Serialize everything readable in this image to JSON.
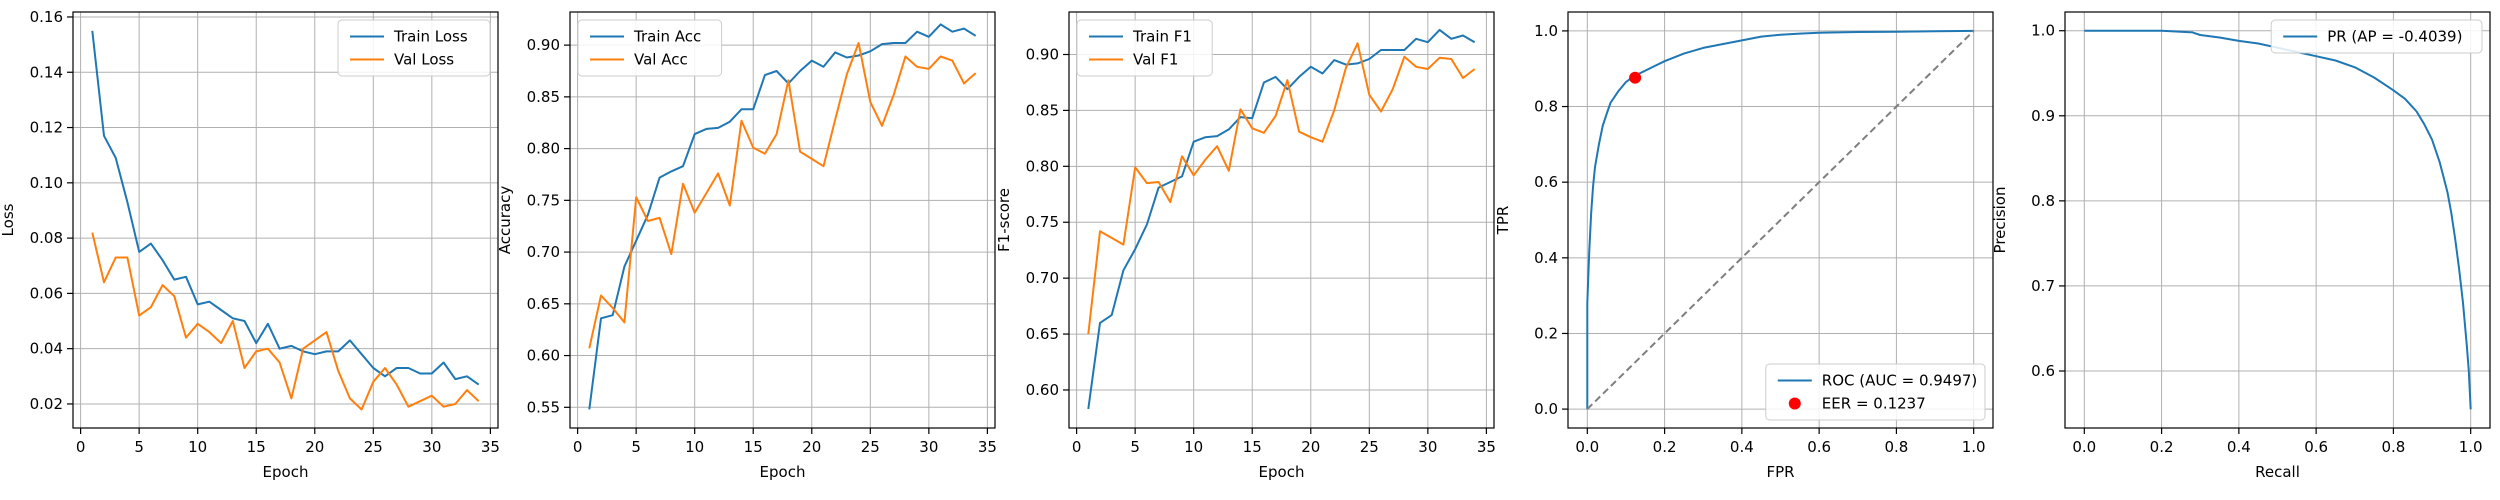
{
  "chart_data": [
    {
      "type": "line",
      "xlabel": "Epoch",
      "ylabel": "Loss",
      "xlim": [
        -0.65,
        35.65
      ],
      "ylim": [
        0.0113,
        0.1618
      ],
      "xticks": [
        0,
        5,
        10,
        15,
        20,
        25,
        30,
        35
      ],
      "xticklabels": [
        "0",
        "5",
        "10",
        "15",
        "20",
        "25",
        "30",
        "35"
      ],
      "yticks": [
        0.02,
        0.04,
        0.06,
        0.08,
        0.1,
        0.12,
        0.14,
        0.16
      ],
      "yticklabels": [
        "0.02",
        "0.04",
        "0.06",
        "0.08",
        "0.10",
        "0.12",
        "0.14",
        "0.16"
      ],
      "grid": true,
      "legend_position": "upper right",
      "series": [
        {
          "name": "Train Loss",
          "color": "#1f77b4",
          "x": [
            1,
            2,
            3,
            4,
            5,
            6,
            7,
            8,
            9,
            10,
            11,
            12,
            13,
            14,
            15,
            16,
            17,
            18,
            19,
            20,
            21,
            22,
            23,
            24,
            25,
            26,
            27,
            28,
            29,
            30,
            31,
            32,
            33,
            34
          ],
          "y": [
            0.155,
            0.117,
            0.109,
            0.093,
            0.075,
            0.078,
            0.072,
            0.065,
            0.066,
            0.056,
            0.057,
            0.054,
            0.051,
            0.05,
            0.042,
            0.049,
            0.04,
            0.041,
            0.039,
            0.038,
            0.039,
            0.039,
            0.043,
            0.038,
            0.033,
            0.03,
            0.033,
            0.033,
            0.031,
            0.031,
            0.035,
            0.029,
            0.03,
            0.027
          ]
        },
        {
          "name": "Val Loss",
          "color": "#ff7f0e",
          "x": [
            1,
            2,
            3,
            4,
            5,
            6,
            7,
            8,
            9,
            10,
            11,
            12,
            13,
            14,
            15,
            16,
            17,
            18,
            19,
            20,
            21,
            22,
            23,
            24,
            25,
            26,
            27,
            28,
            29,
            30,
            31,
            32,
            33,
            34
          ],
          "y": [
            0.082,
            0.064,
            0.073,
            0.073,
            0.052,
            0.055,
            0.063,
            0.059,
            0.044,
            0.049,
            0.046,
            0.042,
            0.05,
            0.033,
            0.039,
            0.04,
            0.035,
            0.022,
            0.04,
            0.043,
            0.046,
            0.032,
            0.022,
            0.018,
            0.028,
            0.033,
            0.027,
            0.019,
            0.021,
            0.023,
            0.019,
            0.02,
            0.025,
            0.021
          ]
        }
      ]
    },
    {
      "type": "line",
      "xlabel": "Epoch",
      "ylabel": "Accuracy",
      "xlim": [
        -0.65,
        35.65
      ],
      "ylim": [
        0.53,
        0.932
      ],
      "xticks": [
        0,
        5,
        10,
        15,
        20,
        25,
        30,
        35
      ],
      "xticklabels": [
        "0",
        "5",
        "10",
        "15",
        "20",
        "25",
        "30",
        "35"
      ],
      "yticks": [
        0.55,
        0.6,
        0.65,
        0.7,
        0.75,
        0.8,
        0.85,
        0.9
      ],
      "yticklabels": [
        "0.55",
        "0.60",
        "0.65",
        "0.70",
        "0.75",
        "0.80",
        "0.85",
        "0.90"
      ],
      "grid": true,
      "legend_position": "upper left",
      "series": [
        {
          "name": "Train Acc",
          "color": "#1f77b4",
          "x": [
            1,
            2,
            3,
            4,
            5,
            6,
            7,
            8,
            9,
            10,
            11,
            12,
            13,
            14,
            15,
            16,
            17,
            18,
            19,
            20,
            21,
            22,
            23,
            24,
            25,
            26,
            27,
            28,
            29,
            30,
            31,
            32,
            33,
            34
          ],
          "y": [
            0.548,
            0.636,
            0.639,
            0.686,
            0.711,
            0.736,
            0.772,
            0.778,
            0.783,
            0.814,
            0.819,
            0.82,
            0.826,
            0.838,
            0.838,
            0.871,
            0.875,
            0.863,
            0.875,
            0.885,
            0.879,
            0.893,
            0.888,
            0.89,
            0.894,
            0.901,
            0.902,
            0.902,
            0.913,
            0.908,
            0.92,
            0.913,
            0.916,
            0.909
          ]
        },
        {
          "name": "Val Acc",
          "color": "#ff7f0e",
          "x": [
            1,
            2,
            3,
            4,
            5,
            6,
            7,
            8,
            9,
            10,
            11,
            12,
            13,
            14,
            15,
            16,
            17,
            18,
            19,
            20,
            21,
            22,
            23,
            24,
            25,
            26,
            27,
            28,
            29,
            30,
            31,
            32,
            33,
            34
          ],
          "y": [
            0.607,
            0.658,
            0.646,
            0.632,
            0.753,
            0.73,
            0.733,
            0.698,
            0.766,
            0.738,
            0.757,
            0.776,
            0.745,
            0.827,
            0.801,
            0.795,
            0.814,
            0.866,
            0.797,
            0.79,
            0.783,
            0.828,
            0.872,
            0.902,
            0.845,
            0.822,
            0.852,
            0.889,
            0.879,
            0.877,
            0.889,
            0.885,
            0.863,
            0.873
          ]
        }
      ]
    },
    {
      "type": "line",
      "xlabel": "Epoch",
      "ylabel": "F1-score",
      "xlim": [
        -0.65,
        35.65
      ],
      "ylim": [
        0.566,
        0.938
      ],
      "xticks": [
        0,
        5,
        10,
        15,
        20,
        25,
        30,
        35
      ],
      "xticklabels": [
        "0",
        "5",
        "10",
        "15",
        "20",
        "25",
        "30",
        "35"
      ],
      "yticks": [
        0.6,
        0.65,
        0.7,
        0.75,
        0.8,
        0.85,
        0.9
      ],
      "yticklabels": [
        "0.60",
        "0.65",
        "0.70",
        "0.75",
        "0.80",
        "0.85",
        "0.90"
      ],
      "grid": true,
      "legend_position": "upper left",
      "series": [
        {
          "name": "Train F1",
          "color": "#1f77b4",
          "x": [
            1,
            2,
            3,
            4,
            5,
            6,
            7,
            8,
            9,
            10,
            11,
            12,
            13,
            14,
            15,
            16,
            17,
            18,
            19,
            20,
            21,
            22,
            23,
            24,
            25,
            26,
            27,
            28,
            29,
            30,
            31,
            32,
            33,
            34
          ],
          "y": [
            0.583,
            0.66,
            0.667,
            0.707,
            0.726,
            0.748,
            0.781,
            0.786,
            0.791,
            0.822,
            0.826,
            0.827,
            0.833,
            0.844,
            0.843,
            0.875,
            0.88,
            0.869,
            0.88,
            0.889,
            0.883,
            0.895,
            0.891,
            0.892,
            0.896,
            0.904,
            0.904,
            0.904,
            0.914,
            0.911,
            0.922,
            0.914,
            0.917,
            0.911
          ]
        },
        {
          "name": "Val F1",
          "color": "#ff7f0e",
          "x": [
            1,
            2,
            3,
            4,
            5,
            6,
            7,
            8,
            9,
            10,
            11,
            12,
            13,
            14,
            15,
            16,
            17,
            18,
            19,
            20,
            21,
            22,
            23,
            24,
            25,
            26,
            27,
            28,
            29,
            30,
            31,
            32,
            33,
            34
          ],
          "y": [
            0.65,
            0.742,
            0.736,
            0.73,
            0.799,
            0.785,
            0.786,
            0.768,
            0.809,
            0.792,
            0.806,
            0.818,
            0.796,
            0.851,
            0.834,
            0.83,
            0.845,
            0.877,
            0.831,
            0.826,
            0.822,
            0.85,
            0.888,
            0.91,
            0.864,
            0.849,
            0.869,
            0.898,
            0.889,
            0.887,
            0.897,
            0.896,
            0.879,
            0.887
          ]
        }
      ]
    },
    {
      "type": "line",
      "xlabel": "FPR",
      "ylabel": "TPR",
      "xlim": [
        -0.05,
        1.05
      ],
      "ylim": [
        -0.05,
        1.05
      ],
      "xticks": [
        0.0,
        0.2,
        0.4,
        0.6,
        0.8,
        1.0
      ],
      "xticklabels": [
        "0.0",
        "0.2",
        "0.4",
        "0.6",
        "0.8",
        "1.0"
      ],
      "yticks": [
        0.0,
        0.2,
        0.4,
        0.6,
        0.8,
        1.0
      ],
      "yticklabels": [
        "0.0",
        "0.2",
        "0.4",
        "0.6",
        "0.8",
        "1.0"
      ],
      "grid": true,
      "legend_position": "lower right",
      "series": [
        {
          "name": "ROC (AUC = 0.9497)",
          "color": "#1f77b4",
          "x": [
            0.0,
            0.0,
            0.005,
            0.01,
            0.015,
            0.02,
            0.03,
            0.04,
            0.05,
            0.06,
            0.08,
            0.1,
            0.12,
            0.15,
            0.2,
            0.25,
            0.3,
            0.35,
            0.4,
            0.45,
            0.5,
            0.55,
            0.6,
            0.7,
            0.8,
            0.9,
            1.0
          ],
          "y": [
            0.0,
            0.28,
            0.42,
            0.52,
            0.59,
            0.64,
            0.7,
            0.75,
            0.78,
            0.81,
            0.84,
            0.865,
            0.88,
            0.895,
            0.92,
            0.94,
            0.955,
            0.965,
            0.975,
            0.985,
            0.99,
            0.993,
            0.995,
            0.997,
            0.998,
            0.999,
            1.0
          ]
        },
        {
          "name": "chance",
          "color": "#7f7f7f",
          "style": "dashed",
          "x": [
            0.0,
            1.0
          ],
          "y": [
            0.0,
            1.0
          ]
        },
        {
          "name": "EER = 0.1237",
          "color": "#ff0000",
          "type": "scatter",
          "x": [
            0.1237
          ],
          "y": [
            0.8763
          ]
        }
      ]
    },
    {
      "type": "line",
      "xlabel": "Recall",
      "ylabel": "Precision",
      "xlim": [
        -0.05,
        1.05
      ],
      "ylim": [
        0.533,
        1.022
      ],
      "xticks": [
        0.0,
        0.2,
        0.4,
        0.6,
        0.8,
        1.0
      ],
      "xticklabels": [
        "0.0",
        "0.2",
        "0.4",
        "0.6",
        "0.8",
        "1.0"
      ],
      "yticks": [
        0.6,
        0.7,
        0.8,
        0.9,
        1.0
      ],
      "yticklabels": [
        "0.6",
        "0.7",
        "0.8",
        "0.9",
        "1.0"
      ],
      "grid": true,
      "legend_position": "upper right",
      "series": [
        {
          "name": "PR (AP = -0.4039)",
          "color": "#1f77b4",
          "x": [
            0.0,
            0.1,
            0.2,
            0.28,
            0.3,
            0.35,
            0.4,
            0.45,
            0.5,
            0.55,
            0.6,
            0.65,
            0.7,
            0.75,
            0.8,
            0.83,
            0.86,
            0.88,
            0.9,
            0.92,
            0.94,
            0.95,
            0.96,
            0.97,
            0.98,
            0.985,
            0.99,
            0.995,
            1.0
          ],
          "y": [
            1.0,
            1.0,
            1.0,
            0.998,
            0.995,
            0.992,
            0.988,
            0.985,
            0.98,
            0.975,
            0.97,
            0.965,
            0.957,
            0.945,
            0.93,
            0.92,
            0.905,
            0.89,
            0.872,
            0.845,
            0.81,
            0.785,
            0.755,
            0.72,
            0.68,
            0.655,
            0.63,
            0.6,
            0.555
          ]
        }
      ]
    }
  ]
}
